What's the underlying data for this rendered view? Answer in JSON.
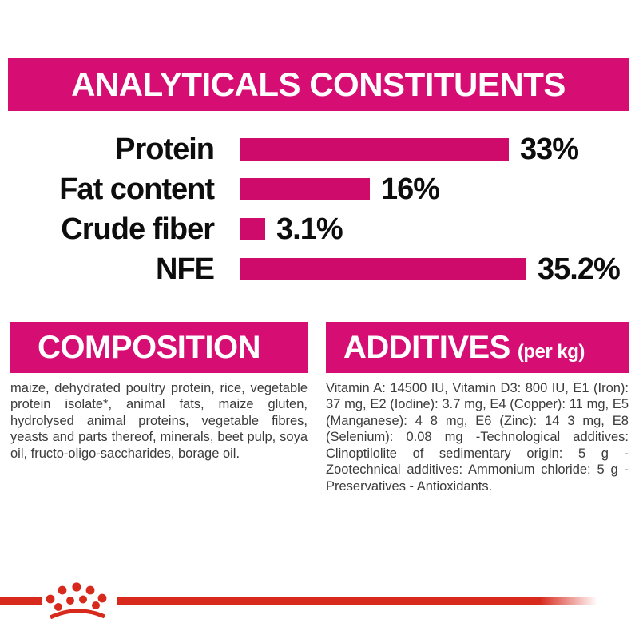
{
  "header": {
    "title": "ANALYTICALS CONSTITUENTS"
  },
  "chart_data": {
    "type": "bar",
    "orientation": "horizontal",
    "title": "ANALYTICALS CONSTITUENTS",
    "categories": [
      "Protein",
      "Fat content",
      "Crude fiber",
      "NFE"
    ],
    "values": [
      33,
      16,
      3.1,
      35.2
    ],
    "value_labels": [
      "33%",
      "16%",
      "3.1%",
      "35.2%"
    ],
    "unit": "%",
    "xlim": [
      0,
      39
    ],
    "grid": false,
    "legend": false,
    "bar_color": "#CE0B6B"
  },
  "composition": {
    "title": "COMPOSITION",
    "body": "maize, dehydrated poultry protein, rice, vegetable protein isolate*, animal fats, maize gluten, hydrolysed animal proteins, vegetable fibres, yeasts and parts thereof, minerals, beet pulp, soya oil, fructo-oligo-saccharides, borage oil."
  },
  "additives": {
    "title": "ADDITIVES",
    "subtitle": "(per kg)",
    "body": "Vitamin A: 14500 IU, Vitamin D3: 800 IU, E1 (Iron): 37 mg, E2 (Iodine): 3.7 mg, E4 (Copper): 11 mg, E5 (Manganese): 4 8 mg, E6 (Zinc): 14 3 mg, E8 (Selenium): 0.08 mg -Technological additives: Clinoptilolite of sedimentary origin: 5 g - Zootechnical additives: Ammonium chloride: 5 g - Preservatives - Antioxidants."
  },
  "footer": {
    "logo": "royal-canin-crown"
  },
  "colors": {
    "magenta_header": "#D60D72",
    "magenta_bar": "#CE0B6B",
    "red_accent": "#D8291D",
    "body_text": "#3B3B3B",
    "label_text": "#0D0D0D"
  }
}
